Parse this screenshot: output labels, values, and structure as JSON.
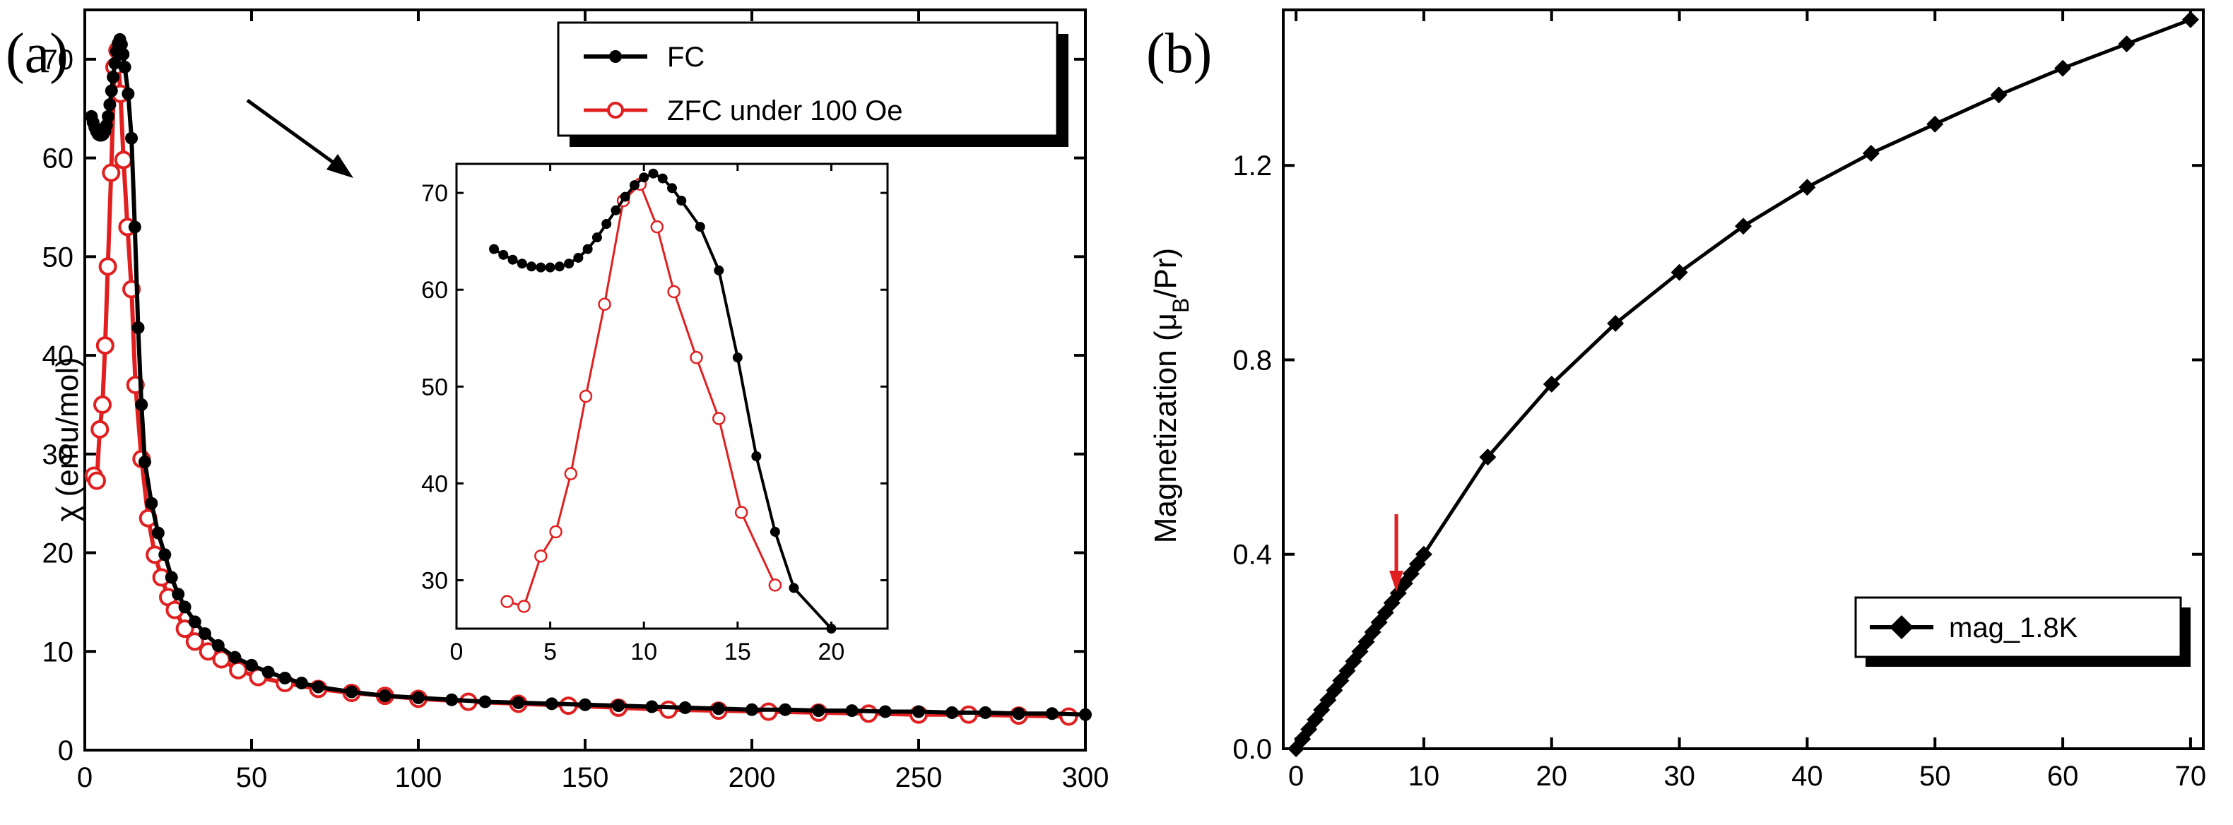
{
  "panel_a_label": "(a)",
  "panel_b_label": "(b)",
  "chart_data": [
    {
      "panel": "(a)",
      "type": "line",
      "xlabel": "",
      "ylabel": "χ (emu/mol)",
      "xlim": [
        0,
        300
      ],
      "ylim": [
        0,
        75
      ],
      "xticks": [
        0,
        50,
        100,
        150,
        200,
        250,
        300
      ],
      "yticks": [
        0,
        10,
        20,
        30,
        40,
        50,
        60,
        70
      ],
      "legend": {
        "position": "top-right",
        "entries": [
          "FC",
          "ZFC under 100 Oe"
        ]
      },
      "series": [
        {
          "name": "FC",
          "color": "#000000",
          "marker": "filled-circle",
          "x": [
            2,
            2.5,
            3,
            3.5,
            4,
            4.5,
            5,
            5.5,
            6,
            6.5,
            7,
            7.5,
            8,
            8.5,
            9,
            9.5,
            10,
            10.5,
            11,
            11.5,
            12,
            13,
            14,
            15,
            16,
            17,
            18,
            20,
            22,
            24,
            26,
            28,
            30,
            33,
            36,
            40,
            45,
            50,
            55,
            60,
            65,
            70,
            80,
            90,
            100,
            110,
            120,
            130,
            140,
            150,
            160,
            170,
            180,
            190,
            200,
            210,
            220,
            230,
            240,
            250,
            260,
            270,
            280,
            290,
            300
          ],
          "y": [
            64.2,
            63.6,
            63.1,
            62.7,
            62.4,
            62.3,
            62.3,
            62.4,
            62.7,
            63.3,
            64.2,
            65.4,
            66.8,
            68.2,
            69.6,
            70.8,
            71.6,
            72.0,
            71.5,
            70.5,
            69.2,
            66.5,
            62.0,
            53.0,
            42.8,
            35.0,
            29.2,
            25.0,
            22.0,
            19.8,
            17.5,
            15.8,
            14.5,
            13.0,
            11.8,
            10.6,
            9.4,
            8.6,
            7.9,
            7.3,
            6.8,
            6.4,
            5.9,
            5.5,
            5.3,
            5.1,
            4.9,
            4.8,
            4.7,
            4.6,
            4.5,
            4.4,
            4.3,
            4.2,
            4.1,
            4.1,
            4.0,
            4.0,
            3.9,
            3.9,
            3.8,
            3.8,
            3.7,
            3.7,
            3.6
          ]
        },
        {
          "name": "ZFC under 100 Oe",
          "color": "#e02020",
          "marker": "open-circle",
          "x": [
            2.7,
            3.6,
            4.5,
            5.3,
            6.1,
            6.9,
            7.9,
            8.9,
            9.8,
            10.7,
            11.6,
            12.8,
            14,
            15.2,
            17,
            19,
            21,
            23,
            25,
            27,
            30,
            33,
            37,
            41,
            46,
            52,
            60,
            70,
            80,
            90,
            100,
            115,
            130,
            145,
            160,
            175,
            190,
            205,
            220,
            235,
            250,
            265,
            280,
            295
          ],
          "y": [
            27.8,
            27.3,
            32.5,
            35.0,
            41.0,
            49.0,
            58.5,
            69.2,
            70.9,
            66.5,
            59.8,
            53.0,
            46.7,
            37.0,
            29.5,
            23.5,
            19.8,
            17.5,
            15.5,
            14.2,
            12.3,
            11.0,
            10.0,
            9.2,
            8.1,
            7.4,
            6.8,
            6.2,
            5.8,
            5.5,
            5.2,
            4.9,
            4.7,
            4.5,
            4.3,
            4.1,
            4.0,
            3.9,
            3.8,
            3.7,
            3.6,
            3.6,
            3.5,
            3.4
          ]
        }
      ],
      "inset": {
        "type": "line",
        "xlim": [
          0,
          23
        ],
        "ylim": [
          25,
          73
        ],
        "xticks": [
          0,
          5,
          10,
          15,
          20
        ],
        "yticks": [
          30,
          40,
          50,
          60,
          70
        ]
      }
    },
    {
      "panel": "(b)",
      "type": "line",
      "xlabel": "",
      "ylabel": "Magnetization (μB/Pr)",
      "xlim": [
        -1,
        71
      ],
      "ylim": [
        0,
        1.52
      ],
      "xticks": [
        0,
        10,
        20,
        30,
        40,
        50,
        60,
        70
      ],
      "yticks": [
        0.0,
        0.4,
        0.8,
        1.2
      ],
      "ytick_labels": [
        "0.0",
        "0.4",
        "0.8",
        "1.2"
      ],
      "legend": {
        "position": "bottom-right",
        "entries": [
          "mag_1.8K"
        ]
      },
      "annotation": {
        "type": "arrow",
        "color": "#e02020",
        "x": 6.5,
        "y": 0.31
      },
      "series": [
        {
          "name": "mag_1.8K",
          "color": "#000000",
          "marker": "filled-diamond",
          "x": [
            0,
            0.5,
            1,
            1.5,
            2,
            2.5,
            3,
            3.5,
            4,
            4.5,
            5,
            5.5,
            6,
            6.5,
            7,
            7.5,
            8,
            8.5,
            9,
            9.5,
            10,
            15,
            20,
            25,
            30,
            35,
            40,
            45,
            50,
            55,
            60,
            65,
            70
          ],
          "y": [
            0,
            0.02,
            0.04,
            0.06,
            0.08,
            0.1,
            0.12,
            0.14,
            0.16,
            0.18,
            0.2,
            0.22,
            0.24,
            0.26,
            0.28,
            0.3,
            0.32,
            0.34,
            0.36,
            0.38,
            0.4,
            0.6,
            0.75,
            0.875,
            0.98,
            1.075,
            1.155,
            1.225,
            1.285,
            1.345,
            1.4,
            1.45,
            1.5
          ]
        }
      ]
    }
  ]
}
